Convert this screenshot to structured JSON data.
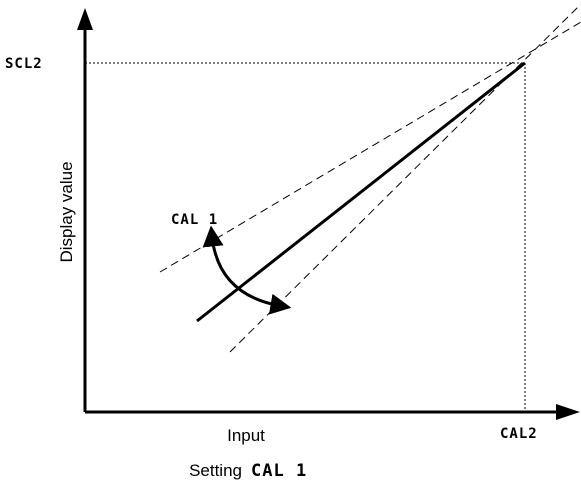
{
  "axes": {
    "y_label": "Display value",
    "x_label": "Input"
  },
  "labels": {
    "scl2": "SCL2",
    "cal2": "CAL2",
    "cal1": "CAL 1"
  },
  "caption": {
    "prefix": "Setting",
    "code": "CAL 1"
  }
}
